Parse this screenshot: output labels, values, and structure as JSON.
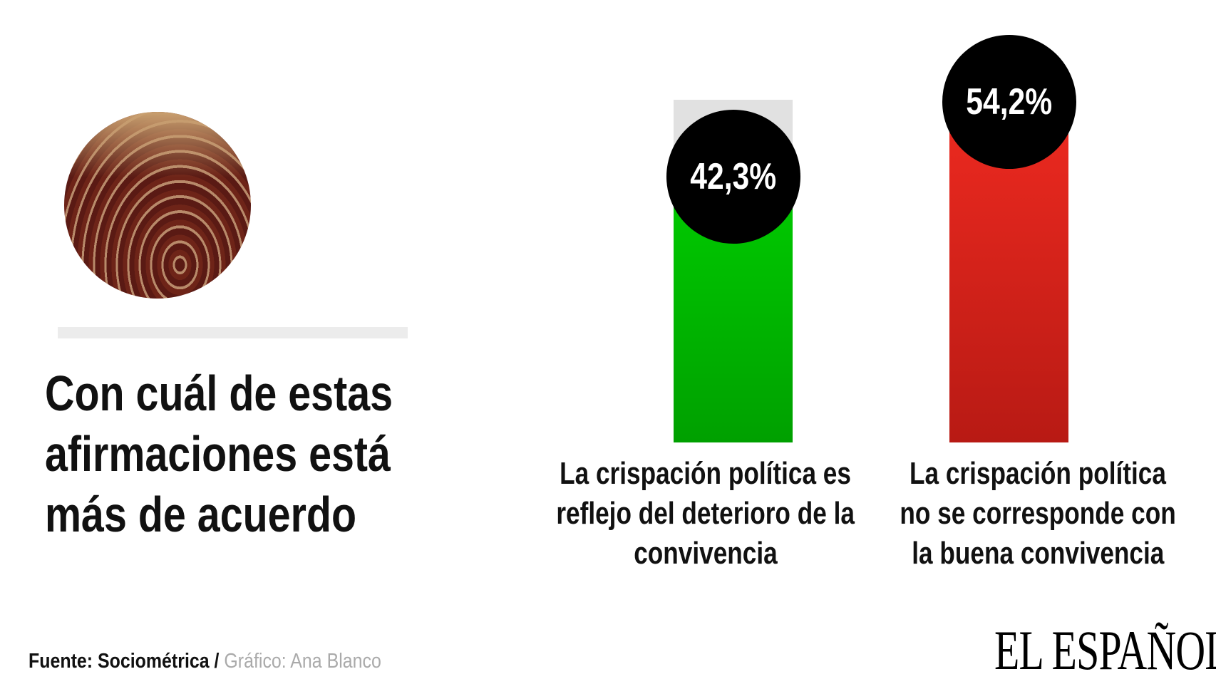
{
  "title": "Con cuál de estas afirmaciones está más de acuerdo",
  "title_lines": [
    "Con cuál de estas",
    "afirmaciones está",
    "más de acuerdo"
  ],
  "footer": {
    "source": "Fuente: Sociométrica",
    "separator": " / ",
    "credit": "Gráfico: Ana Blanco"
  },
  "logo": "EL ESPAÑOL",
  "photo": "parliament-chamber-photo",
  "chart_data": {
    "type": "bar",
    "categories": [
      "La crispación política es reflejo del deterioro de la convivencia",
      "La crispación política no se corresponde con la buena convivencia"
    ],
    "values": [
      42.3,
      54.2
    ],
    "value_labels": [
      "42,3%",
      "54,2%"
    ],
    "category_lines": [
      [
        "La crispación política es",
        "reflejo del deterioro de la",
        "convivencia"
      ],
      [
        "La crispación política",
        "no se corresponde con",
        "la buena convivencia"
      ]
    ],
    "colors": [
      "#00b800",
      "#e0241c"
    ],
    "track_color": "#e1e1e1",
    "ylim": [
      0,
      54.2
    ],
    "grid": false
  }
}
